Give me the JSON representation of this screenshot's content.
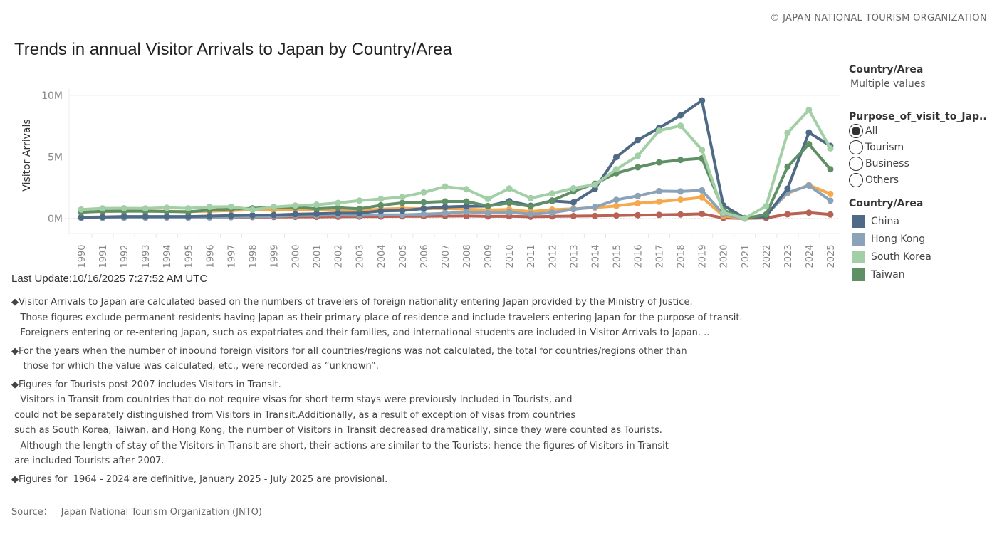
{
  "header": {
    "copyright": "© JAPAN NATIONAL TOURISM ORGANIZATION",
    "title": "Trends in annual Visitor Arrivals to Japan by Country/Area"
  },
  "filters": {
    "country_title": "Country/Area",
    "country_value": "Multiple values",
    "purpose_title": "Purpose_of_visit_to_Jap..",
    "purpose_options": [
      "All",
      "Tourism",
      "Business",
      "Others"
    ],
    "purpose_selected": "All"
  },
  "legend": {
    "title": "Country/Area",
    "items": [
      {
        "label": "China",
        "color": "#4e6a86"
      },
      {
        "label": "Hong Kong",
        "color": "#8aa3b8"
      },
      {
        "label": "South Korea",
        "color": "#a3cfa7"
      },
      {
        "label": "Taiwan",
        "color": "#5e8f65"
      }
    ]
  },
  "chart_data": {
    "type": "line",
    "title": "Trends in annual Visitor Arrivals to Japan by Country/Area",
    "xlabel": "",
    "ylabel": "Visitor Arrivals",
    "ylim": [
      -0.5,
      10.5
    ],
    "yticks": [
      0,
      5,
      10
    ],
    "ytick_labels": [
      "0M",
      "5M",
      "10M"
    ],
    "grid": true,
    "legend_position": "right",
    "x": [
      1990,
      1991,
      1992,
      1993,
      1994,
      1995,
      1996,
      1997,
      1998,
      1999,
      2000,
      2001,
      2002,
      2003,
      2004,
      2005,
      2006,
      2007,
      2008,
      2009,
      2010,
      2011,
      2012,
      2013,
      2014,
      2015,
      2016,
      2017,
      2018,
      2019,
      2020,
      2021,
      2022,
      2023,
      2024,
      2025
    ],
    "series": [
      {
        "name": "Red series",
        "color": "#b86154",
        "values": [
          0.06,
          0.07,
          0.08,
          0.08,
          0.09,
          0.09,
          0.1,
          0.11,
          0.12,
          0.13,
          0.14,
          0.14,
          0.15,
          0.16,
          0.17,
          0.18,
          0.19,
          0.2,
          0.21,
          0.18,
          0.19,
          0.15,
          0.18,
          0.2,
          0.22,
          0.25,
          0.28,
          0.3,
          0.33,
          0.38,
          0.05,
          0.01,
          0.05,
          0.35,
          0.48,
          0.33
        ]
      },
      {
        "name": "Orange series",
        "color": "#f5a94c",
        "values": [
          0.55,
          0.56,
          0.6,
          0.6,
          0.6,
          0.56,
          0.6,
          0.65,
          0.72,
          0.7,
          0.72,
          0.7,
          0.73,
          0.66,
          0.77,
          0.82,
          0.81,
          0.82,
          0.77,
          0.7,
          0.73,
          0.57,
          0.72,
          0.8,
          0.89,
          1.03,
          1.24,
          1.37,
          1.53,
          1.72,
          0.22,
          0.02,
          0.32,
          2.05,
          2.72,
          2.0
        ]
      },
      {
        "name": "Hong Kong",
        "color": "#8aa3b8",
        "values": [
          0.06,
          0.07,
          0.07,
          0.08,
          0.09,
          0.07,
          0.09,
          0.12,
          0.16,
          0.18,
          0.24,
          0.26,
          0.29,
          0.26,
          0.3,
          0.3,
          0.35,
          0.43,
          0.55,
          0.45,
          0.51,
          0.36,
          0.48,
          0.75,
          0.93,
          1.52,
          1.84,
          2.23,
          2.2,
          2.29,
          0.35,
          0.01,
          0.27,
          2.11,
          2.68,
          1.45
        ]
      },
      {
        "name": "China",
        "color": "#4e6a86",
        "values": [
          0.11,
          0.13,
          0.17,
          0.17,
          0.17,
          0.17,
          0.2,
          0.24,
          0.27,
          0.29,
          0.35,
          0.39,
          0.45,
          0.45,
          0.62,
          0.65,
          0.81,
          0.94,
          1.0,
          1.01,
          1.41,
          1.04,
          1.43,
          1.31,
          2.41,
          4.99,
          6.37,
          7.36,
          8.38,
          9.59,
          1.07,
          0.04,
          0.19,
          2.43,
          6.98,
          5.9
        ]
      },
      {
        "name": "Taiwan",
        "color": "#5e8f65",
        "values": [
          0.5,
          0.6,
          0.6,
          0.6,
          0.58,
          0.55,
          0.69,
          0.78,
          0.83,
          0.93,
          0.91,
          0.81,
          0.88,
          0.79,
          1.08,
          1.27,
          1.31,
          1.39,
          1.39,
          1.02,
          1.27,
          0.99,
          1.47,
          2.21,
          2.83,
          3.68,
          4.17,
          4.56,
          4.76,
          4.89,
          0.69,
          0.01,
          0.33,
          4.2,
          6.04,
          4.0
        ]
      },
      {
        "name": "South Korea",
        "color": "#a3cfa7",
        "values": [
          0.74,
          0.83,
          0.84,
          0.82,
          0.88,
          0.83,
          0.95,
          0.97,
          0.72,
          0.94,
          1.06,
          1.13,
          1.27,
          1.46,
          1.59,
          1.75,
          2.12,
          2.6,
          2.38,
          1.59,
          2.44,
          1.66,
          2.04,
          2.46,
          2.76,
          4.0,
          5.09,
          7.14,
          7.54,
          5.58,
          0.49,
          0.02,
          1.01,
          6.96,
          8.82,
          5.7
        ]
      }
    ]
  },
  "notes": {
    "last_update": "Last Update:10/16/2025 7:27:52 AM UTC",
    "lines": [
      "◆Visitor Arrivals to Japan are calculated based on the numbers of travelers of foreign nationality entering Japan provided by the Ministry of Justice.",
      "   Those figures exclude permanent residents having Japan as their primary place of residence and include travelers entering Japan for the purpose of transit.",
      "   Foreigners entering or re-entering Japan, such as expatriates and their families, and international students are included in Visitor Arrivals to Japan. ..",
      "◆For the years when the number of inbound foreign visitors for all countries/regions was not calculated, the total for countries/regions other than",
      "    those for which the value was calculated, etc., were recorded as ”unknown”.",
      "◆Figures for Tourists post 2007 includes Visitors in Transit.",
      "   Visitors in Transit from countries that do not require visas for short term stays were previously included in Tourists, and",
      " could not be separately distinguished from Visitors in Transit.Additionally, as a result of exception of visas from countries",
      " such as South Korea, Taiwan, and Hong Kong, the number of Visitors in Transit decreased dramatically, since they were counted as Tourists.",
      "   Although the length of stay of the Visitors in Transit are short, their actions are similar to the Tourists; hence the figures of Visitors in Transit",
      " are included Tourists after 2007.",
      "◆Figures for  1964 - 2024 are definitive, January 2025 - July 2025 are provisional."
    ],
    "source_label": "Source：",
    "source_value": "Japan National Tourism Organization (JNTO)"
  }
}
